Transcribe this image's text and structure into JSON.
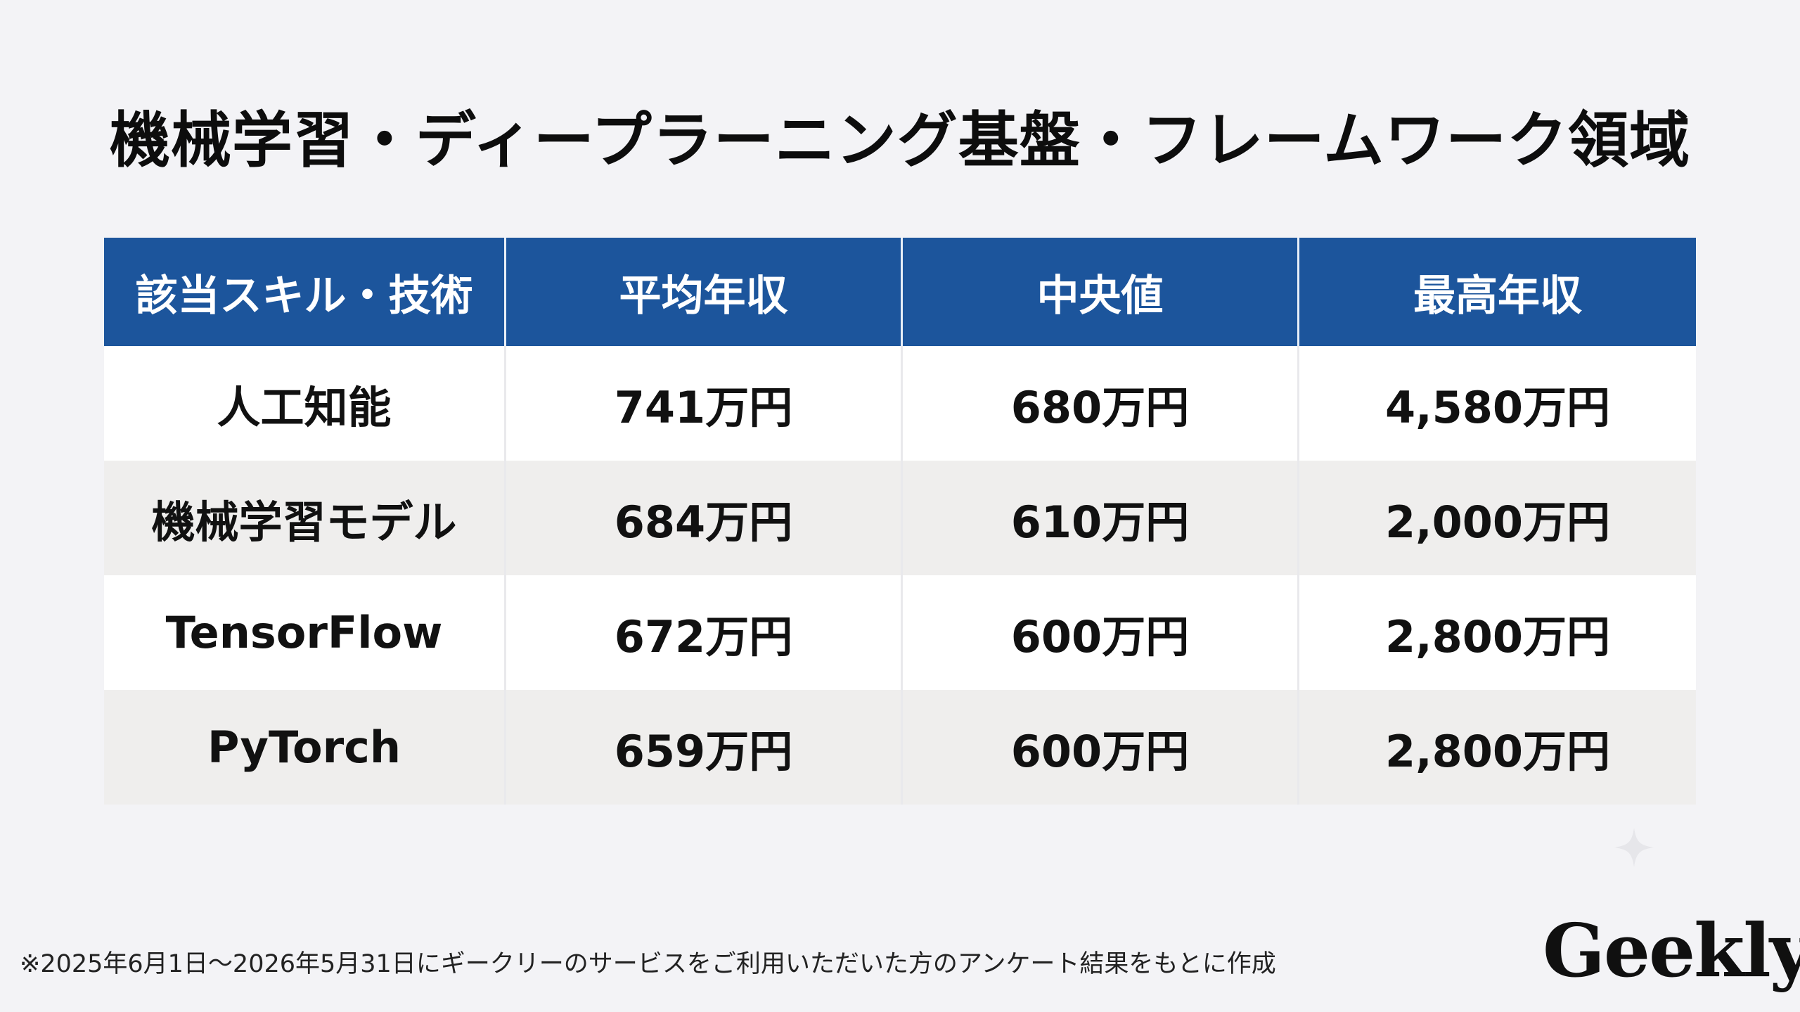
{
  "title": "機械学習・ディープラーニング基盤・フレームワーク領域",
  "table": {
    "headers": [
      "該当スキル・技術",
      "平均年収",
      "中央値",
      "最高年収"
    ],
    "rows": [
      [
        "人工知能",
        "741万円",
        "680万円",
        "4,580万円"
      ],
      [
        "機械学習モデル",
        "684万円",
        "610万円",
        "2,000万円"
      ],
      [
        "TensorFlow",
        "672万円",
        "600万円",
        "2,800万円"
      ],
      [
        "PyTorch",
        "659万円",
        "600万円",
        "2,800万円"
      ]
    ]
  },
  "footnote": "※2025年6月1日〜2026年5月31日にギークリーのサービスをご利用いただいた方のアンケート結果をもとに作成",
  "logo": "Geekly",
  "colors": {
    "header_bg": "#1c559c",
    "row_odd": "#ffffff",
    "row_even": "#efeeed",
    "page_bg": "#f3f3f6"
  },
  "icons": {
    "decorative": "sparkle-icon"
  }
}
